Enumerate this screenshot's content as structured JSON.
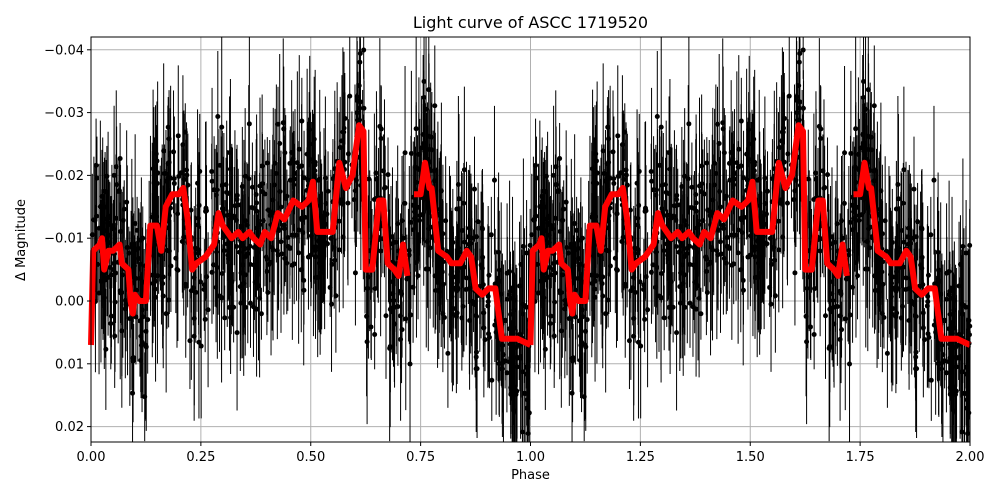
{
  "chart_data": {
    "type": "scatter",
    "title": "Light curve of ASCC 1719520",
    "xlabel": "Phase",
    "ylabel": "Δ Magnitude",
    "xlim": [
      0.0,
      2.0
    ],
    "ylim": [
      0.022,
      -0.042
    ],
    "y_inverted": true,
    "grid": true,
    "xticks": [
      "0.00",
      "0.25",
      "0.50",
      "0.75",
      "1.00",
      "1.25",
      "1.50",
      "1.75",
      "2.00"
    ],
    "xtick_values": [
      0.0,
      0.25,
      0.5,
      0.75,
      1.0,
      1.25,
      1.5,
      1.75,
      2.0
    ],
    "yticks": [
      "−0.04",
      "−0.03",
      "−0.02",
      "−0.01",
      "0.00",
      "0.01",
      "0.02"
    ],
    "ytick_values": [
      -0.04,
      -0.03,
      -0.02,
      -0.01,
      0.0,
      0.01,
      0.02
    ],
    "series": [
      {
        "name": "observations",
        "style": "black points with vertical error bars",
        "color": "#000000",
        "description": "dense phase-folded photometry, scatter roughly -0.04 to +0.02, repeated over phase 0-1 and 1-2"
      },
      {
        "name": "binned/smoothed model",
        "style": "thick line",
        "color": "#ff0000",
        "segments_phase_0_1": [
          {
            "x": [
              0.0,
              0.005,
              0.02,
              0.025,
              0.03,
              0.04,
              0.05,
              0.065,
              0.07,
              0.085,
              0.09,
              0.095,
              0.1,
              0.11,
              0.125,
              0.135,
              0.15,
              0.16,
              0.17,
              0.185,
              0.2,
              0.21,
              0.22,
              0.23,
              0.24,
              0.26,
              0.28,
              0.29,
              0.3,
              0.32,
              0.335,
              0.345,
              0.36,
              0.37,
              0.385,
              0.395,
              0.41,
              0.425,
              0.44,
              0.46,
              0.48,
              0.495,
              0.505,
              0.515,
              0.535,
              0.55,
              0.565,
              0.58,
              0.595,
              0.61,
              0.62,
              0.625,
              0.64,
              0.655,
              0.665,
              0.675,
              0.69,
              0.7,
              0.71,
              0.72
            ],
            "y": [
              0.007,
              -0.008,
              -0.009,
              -0.01,
              -0.005,
              -0.008,
              -0.008,
              -0.009,
              -0.006,
              -0.005,
              0.0,
              0.002,
              -0.001,
              0.0,
              0.0,
              -0.012,
              -0.012,
              -0.008,
              -0.015,
              -0.017,
              -0.017,
              -0.018,
              -0.013,
              -0.005,
              -0.006,
              -0.007,
              -0.009,
              -0.014,
              -0.012,
              -0.01,
              -0.011,
              -0.01,
              -0.011,
              -0.01,
              -0.009,
              -0.011,
              -0.01,
              -0.014,
              -0.013,
              -0.016,
              -0.015,
              -0.016,
              -0.019,
              -0.011,
              -0.011,
              -0.011,
              -0.022,
              -0.018,
              -0.02,
              -0.028,
              -0.027,
              -0.005,
              -0.005,
              -0.016,
              -0.016,
              -0.006,
              -0.005,
              -0.004,
              -0.009,
              -0.004
            ]
          },
          {
            "x": [
              0.735,
              0.75,
              0.76,
              0.77,
              0.775,
              0.79,
              0.81,
              0.82,
              0.84,
              0.855,
              0.865,
              0.875,
              0.89,
              0.905,
              0.92,
              0.935,
              0.955,
              0.97,
              1.0
            ],
            "y": [
              -0.017,
              -0.017,
              -0.022,
              -0.018,
              -0.018,
              -0.008,
              -0.007,
              -0.006,
              -0.006,
              -0.008,
              -0.007,
              -0.002,
              -0.001,
              -0.002,
              -0.002,
              0.006,
              0.006,
              0.006,
              0.007
            ]
          }
        ],
        "repeated_for_phase_1_2": true
      }
    ]
  },
  "colors": {
    "background": "#ffffff",
    "grid": "#b0b0b0",
    "points": "#000000",
    "model": "#ff0000"
  }
}
